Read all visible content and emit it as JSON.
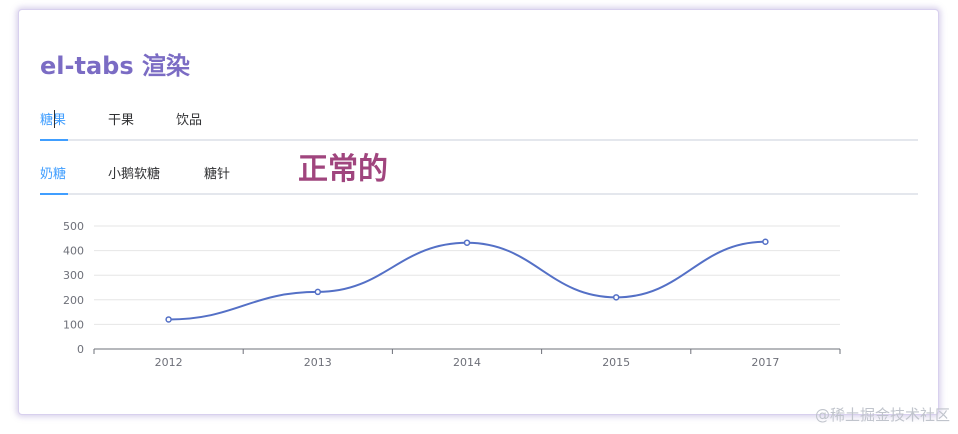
{
  "title": "el-tabs 渲染",
  "outer_tabs": [
    {
      "label": "糖果",
      "active": true
    },
    {
      "label": "干果",
      "active": false
    },
    {
      "label": "饮品",
      "active": false
    }
  ],
  "inner_tabs": [
    {
      "label": "奶糖",
      "active": true
    },
    {
      "label": "小鹅软糖",
      "active": false
    },
    {
      "label": "糖针",
      "active": false
    }
  ],
  "note_text": "正常的",
  "watermark": "@稀土掘金技术社区",
  "colors": {
    "title": "#7b6cc4",
    "active_tab": "#409eff",
    "note": "#a0457e",
    "line": "#5470c6"
  },
  "chart_data": {
    "type": "line",
    "smooth": true,
    "categories": [
      "2012",
      "2013",
      "2014",
      "2015",
      "2017"
    ],
    "series": [
      {
        "values": [
          120,
          232,
          432,
          210,
          436
        ]
      }
    ],
    "ylim": [
      0,
      500
    ],
    "yticks": [
      "0",
      "100",
      "200",
      "300",
      "400",
      "500"
    ],
    "grid": true,
    "legend": "none"
  }
}
